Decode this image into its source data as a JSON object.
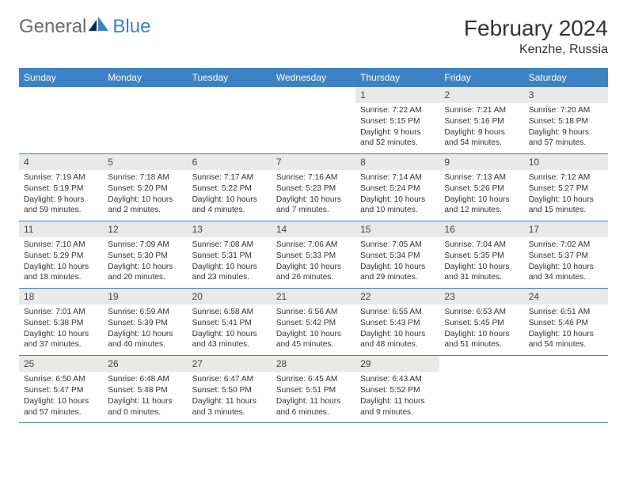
{
  "logo": {
    "text1": "General",
    "text2": "Blue"
  },
  "title": "February 2024",
  "location": "Kenzhe, Russia",
  "colors": {
    "header_bg": "#3d82c4",
    "header_fg": "#ffffff",
    "daynum_bg": "#e9e9e9",
    "border": "#3d82c4",
    "page_bg": "#ffffff",
    "text": "#333333"
  },
  "fonts": {
    "base_family": "Arial",
    "title_size": 28,
    "location_size": 16,
    "th_size": 12,
    "cell_size": 10.2
  },
  "weekdays": [
    "Sunday",
    "Monday",
    "Tuesday",
    "Wednesday",
    "Thursday",
    "Friday",
    "Saturday"
  ],
  "weeks": [
    [
      null,
      null,
      null,
      null,
      {
        "d": "1",
        "sr": "7:22 AM",
        "ss": "5:15 PM",
        "dl": "9 hours and 52 minutes."
      },
      {
        "d": "2",
        "sr": "7:21 AM",
        "ss": "5:16 PM",
        "dl": "9 hours and 54 minutes."
      },
      {
        "d": "3",
        "sr": "7:20 AM",
        "ss": "5:18 PM",
        "dl": "9 hours and 57 minutes."
      }
    ],
    [
      {
        "d": "4",
        "sr": "7:19 AM",
        "ss": "5:19 PM",
        "dl": "9 hours and 59 minutes."
      },
      {
        "d": "5",
        "sr": "7:18 AM",
        "ss": "5:20 PM",
        "dl": "10 hours and 2 minutes."
      },
      {
        "d": "6",
        "sr": "7:17 AM",
        "ss": "5:22 PM",
        "dl": "10 hours and 4 minutes."
      },
      {
        "d": "7",
        "sr": "7:16 AM",
        "ss": "5:23 PM",
        "dl": "10 hours and 7 minutes."
      },
      {
        "d": "8",
        "sr": "7:14 AM",
        "ss": "5:24 PM",
        "dl": "10 hours and 10 minutes."
      },
      {
        "d": "9",
        "sr": "7:13 AM",
        "ss": "5:26 PM",
        "dl": "10 hours and 12 minutes."
      },
      {
        "d": "10",
        "sr": "7:12 AM",
        "ss": "5:27 PM",
        "dl": "10 hours and 15 minutes."
      }
    ],
    [
      {
        "d": "11",
        "sr": "7:10 AM",
        "ss": "5:29 PM",
        "dl": "10 hours and 18 minutes."
      },
      {
        "d": "12",
        "sr": "7:09 AM",
        "ss": "5:30 PM",
        "dl": "10 hours and 20 minutes."
      },
      {
        "d": "13",
        "sr": "7:08 AM",
        "ss": "5:31 PM",
        "dl": "10 hours and 23 minutes."
      },
      {
        "d": "14",
        "sr": "7:06 AM",
        "ss": "5:33 PM",
        "dl": "10 hours and 26 minutes."
      },
      {
        "d": "15",
        "sr": "7:05 AM",
        "ss": "5:34 PM",
        "dl": "10 hours and 29 minutes."
      },
      {
        "d": "16",
        "sr": "7:04 AM",
        "ss": "5:35 PM",
        "dl": "10 hours and 31 minutes."
      },
      {
        "d": "17",
        "sr": "7:02 AM",
        "ss": "5:37 PM",
        "dl": "10 hours and 34 minutes."
      }
    ],
    [
      {
        "d": "18",
        "sr": "7:01 AM",
        "ss": "5:38 PM",
        "dl": "10 hours and 37 minutes."
      },
      {
        "d": "19",
        "sr": "6:59 AM",
        "ss": "5:39 PM",
        "dl": "10 hours and 40 minutes."
      },
      {
        "d": "20",
        "sr": "6:58 AM",
        "ss": "5:41 PM",
        "dl": "10 hours and 43 minutes."
      },
      {
        "d": "21",
        "sr": "6:56 AM",
        "ss": "5:42 PM",
        "dl": "10 hours and 45 minutes."
      },
      {
        "d": "22",
        "sr": "6:55 AM",
        "ss": "5:43 PM",
        "dl": "10 hours and 48 minutes."
      },
      {
        "d": "23",
        "sr": "6:53 AM",
        "ss": "5:45 PM",
        "dl": "10 hours and 51 minutes."
      },
      {
        "d": "24",
        "sr": "6:51 AM",
        "ss": "5:46 PM",
        "dl": "10 hours and 54 minutes."
      }
    ],
    [
      {
        "d": "25",
        "sr": "6:50 AM",
        "ss": "5:47 PM",
        "dl": "10 hours and 57 minutes."
      },
      {
        "d": "26",
        "sr": "6:48 AM",
        "ss": "5:48 PM",
        "dl": "11 hours and 0 minutes."
      },
      {
        "d": "27",
        "sr": "6:47 AM",
        "ss": "5:50 PM",
        "dl": "11 hours and 3 minutes."
      },
      {
        "d": "28",
        "sr": "6:45 AM",
        "ss": "5:51 PM",
        "dl": "11 hours and 6 minutes."
      },
      {
        "d": "29",
        "sr": "6:43 AM",
        "ss": "5:52 PM",
        "dl": "11 hours and 9 minutes."
      },
      null,
      null
    ]
  ],
  "labels": {
    "sunrise": "Sunrise: ",
    "sunset": "Sunset: ",
    "daylight": "Daylight: "
  }
}
